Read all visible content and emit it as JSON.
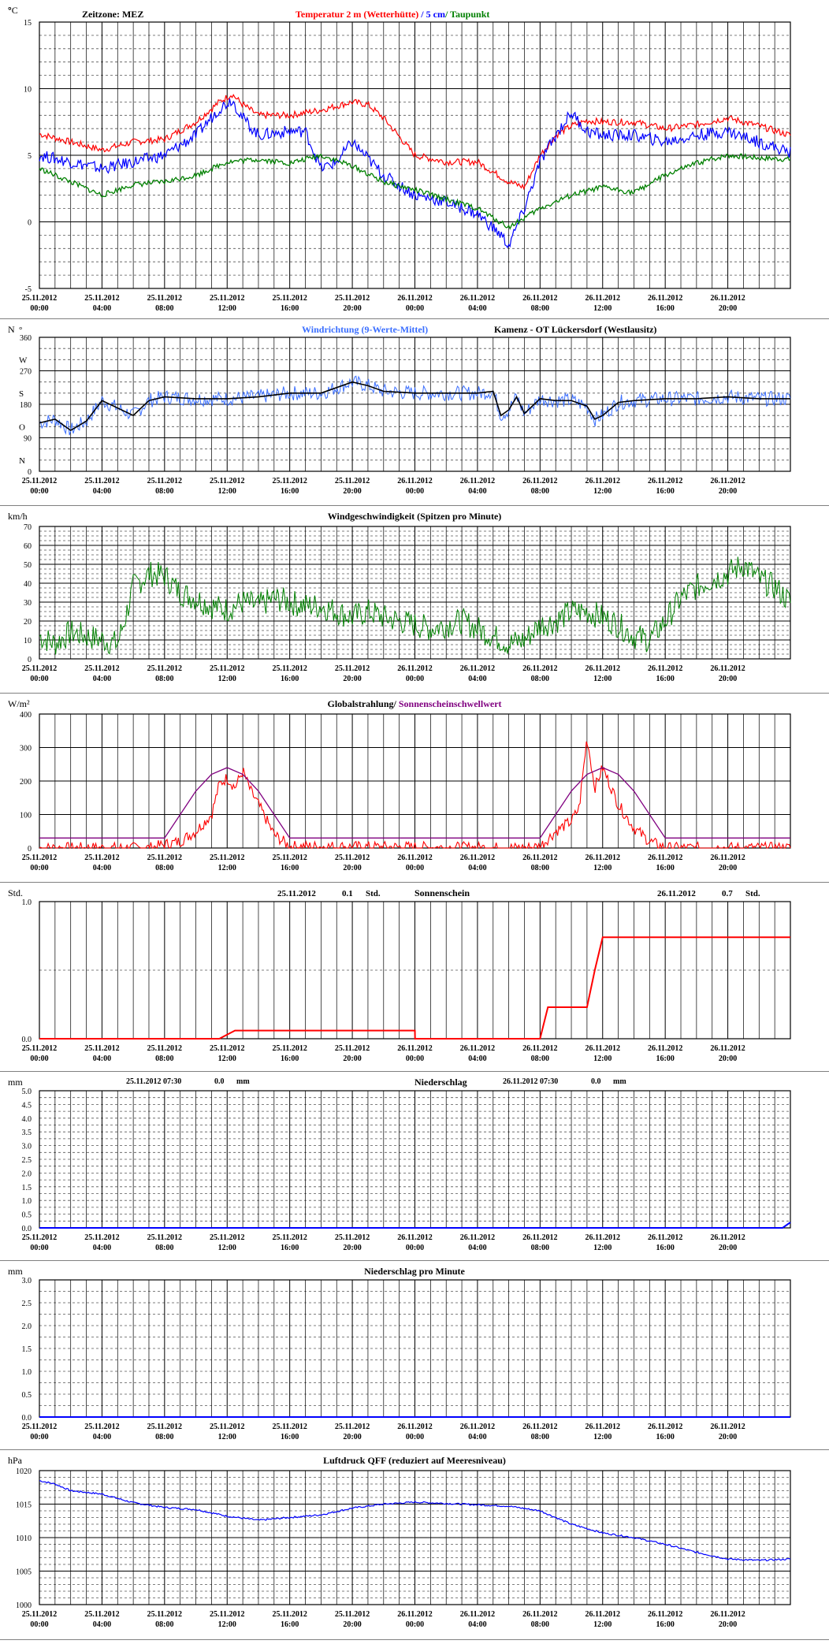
{
  "time_ticks": [
    {
      "date": "25.11.2012",
      "time": "00:00"
    },
    {
      "date": "25.11.2012",
      "time": "04:00"
    },
    {
      "date": "25.11.2012",
      "time": "08:00"
    },
    {
      "date": "25.11.2012",
      "time": "12:00"
    },
    {
      "date": "25.11.2012",
      "time": "16:00"
    },
    {
      "date": "25.11.2012",
      "time": "20:00"
    },
    {
      "date": "26.11.2012",
      "time": "00:00"
    },
    {
      "date": "26.11.2012",
      "time": "04:00"
    },
    {
      "date": "26.11.2012",
      "time": "08:00"
    },
    {
      "date": "26.11.2012",
      "time": "12:00"
    },
    {
      "date": "26.11.2012",
      "time": "16:00"
    },
    {
      "date": "26.11.2012",
      "time": "20:00"
    }
  ],
  "colors": {
    "temp": "#ff0000",
    "soil": "#0000ff",
    "dew": "#008000",
    "wind_dir": "#3b6fff",
    "wind_dir_avg": "#000000",
    "wind": "#008000",
    "rad": "#ff0000",
    "threshold": "#800080",
    "sun": "#ff0000",
    "precip": "#0000ff",
    "pressure": "#0000ff"
  },
  "chart_data": [
    {
      "id": "temperature",
      "type": "line",
      "unit": "°C",
      "zone_label": "Zeitzone: MEZ",
      "title_parts": [
        "Temperatur 2 m (Wetterhütte)",
        "  /  ",
        "5 cm",
        "/ ",
        "Taupunkt"
      ],
      "ylim": [
        -5,
        15
      ],
      "ytick_labels": [
        "15",
        "10",
        "5",
        "0",
        "-5"
      ],
      "series": [
        {
          "name": "Temperatur 2 m (Wetterhütte)",
          "x": [
            0,
            2,
            4,
            6,
            8,
            10,
            11.5,
            12.3,
            13,
            14,
            16,
            18,
            20,
            21,
            22,
            24,
            26,
            28,
            30,
            31,
            32,
            33,
            34,
            35,
            36,
            38,
            40,
            42,
            44,
            46,
            48
          ],
          "y": [
            6.6,
            6,
            5.4,
            6,
            6.2,
            7.5,
            9,
            9.6,
            8.8,
            8,
            8,
            8.4,
            9,
            8.8,
            7.8,
            5,
            4.5,
            4.5,
            3,
            2.6,
            5,
            6.5,
            7.2,
            7.6,
            7.5,
            7.5,
            7,
            7.3,
            7.8,
            7.2,
            6.5
          ]
        },
        {
          "name": "5 cm",
          "x": [
            0,
            2,
            4,
            6,
            8,
            10,
            11.5,
            12.3,
            13,
            14,
            16,
            17,
            18,
            19,
            20,
            22,
            24,
            26,
            28,
            29.5,
            30,
            31,
            32,
            33,
            34,
            35,
            36,
            38,
            40,
            42,
            44,
            46,
            48
          ],
          "y": [
            5,
            4.5,
            4,
            4.5,
            5,
            6.5,
            8.5,
            9.2,
            7.8,
            6.5,
            6.8,
            6.8,
            4,
            4.5,
            6,
            3.5,
            2,
            1.5,
            0.6,
            -1,
            -1.8,
            1,
            4.5,
            6.5,
            8.2,
            6.8,
            6.5,
            6.5,
            6,
            6.5,
            6.8,
            6,
            5.2
          ]
        },
        {
          "name": "Taupunkt",
          "x": [
            0,
            2,
            4,
            6,
            8,
            10,
            12,
            14,
            16,
            18,
            20,
            22,
            24,
            26,
            28,
            30,
            32,
            34,
            36,
            38,
            40,
            42,
            44,
            46,
            48
          ],
          "y": [
            4,
            3,
            2,
            2.8,
            3,
            3.5,
            4.5,
            4.7,
            4.4,
            5,
            4.2,
            3,
            2.4,
            1.7,
            1,
            -0.4,
            1,
            2,
            2.6,
            2.2,
            3.5,
            4.4,
            5,
            4.8,
            4.7
          ]
        }
      ]
    },
    {
      "id": "wind_direction",
      "type": "line",
      "unit": "N",
      "deg_symbol": "°",
      "title_parts": [
        "Windrichtung (9-Werte-Mittel)",
        "Kamenz - OT Lückersdorf (Westlausitz)"
      ],
      "ylim": [
        0,
        360
      ],
      "ytick_labels": [
        "360",
        "270",
        "180",
        "90",
        "0"
      ],
      "compass_labels": [
        "W",
        "S",
        "O",
        "N"
      ],
      "series": [
        {
          "name": "Windrichtung (9-Werte-Mittel)",
          "x": [
            0,
            1,
            2,
            3,
            4,
            5,
            6,
            7,
            8,
            10,
            12,
            14,
            16,
            18,
            20,
            21,
            22,
            24,
            26,
            28,
            29,
            29.5,
            30,
            30.5,
            31,
            32,
            33,
            34,
            35,
            35.5,
            36,
            37,
            38,
            40,
            42,
            44,
            46,
            48
          ],
          "y": [
            130,
            140,
            110,
            135,
            190,
            170,
            150,
            190,
            200,
            195,
            195,
            200,
            210,
            210,
            240,
            230,
            215,
            210,
            210,
            210,
            215,
            150,
            165,
            200,
            155,
            195,
            190,
            190,
            175,
            140,
            150,
            185,
            190,
            195,
            195,
            200,
            195,
            195
          ]
        }
      ]
    },
    {
      "id": "wind_speed",
      "type": "line",
      "unit": "km/h",
      "title": "Windgeschwindigkeit (Spitzen pro Minute)",
      "ylim": [
        0,
        70
      ],
      "ytick_labels": [
        "70",
        "60",
        "50",
        "40",
        "30",
        "20",
        "10",
        "0"
      ],
      "series": [
        {
          "name": "Windgeschwindigkeit",
          "x": [
            0,
            1,
            2,
            3,
            4,
            5,
            5.5,
            6,
            7,
            8,
            9,
            10,
            11,
            12,
            13,
            14,
            15,
            16,
            17,
            18,
            19,
            20,
            21,
            22,
            23,
            24,
            25,
            26,
            27,
            28,
            29,
            30,
            31,
            32,
            33,
            34,
            35,
            36,
            37,
            38,
            39,
            40,
            41,
            42,
            43,
            44,
            45,
            46,
            47,
            48
          ],
          "y": [
            12,
            8,
            14,
            12,
            10,
            8,
            22,
            38,
            45,
            44,
            35,
            32,
            28,
            26,
            30,
            28,
            32,
            30,
            28,
            28,
            25,
            22,
            25,
            22,
            20,
            18,
            16,
            18,
            20,
            16,
            12,
            8,
            10,
            18,
            20,
            25,
            25,
            22,
            18,
            12,
            10,
            20,
            32,
            38,
            42,
            45,
            50,
            42,
            38,
            30
          ]
        }
      ]
    },
    {
      "id": "radiation",
      "type": "line",
      "unit": "W/m²",
      "title_parts": [
        "Globalstrahlung/ ",
        "Sonnenscheinschwellwert"
      ],
      "ylim": [
        0,
        400
      ],
      "ytick_labels": [
        "400",
        "300",
        "200",
        "100",
        "0"
      ],
      "series": [
        {
          "name": "Globalstrahlung",
          "x": [
            0,
            7,
            8,
            9,
            10,
            11,
            11.5,
            12,
            12.5,
            13,
            13.5,
            14,
            15,
            16,
            31,
            32,
            33,
            34,
            34.5,
            35,
            35.5,
            36,
            37,
            38,
            39,
            40,
            48
          ],
          "y": [
            0,
            0,
            10,
            20,
            50,
            100,
            190,
            210,
            180,
            230,
            170,
            130,
            40,
            5,
            0,
            5,
            50,
            80,
            120,
            330,
            180,
            240,
            130,
            60,
            20,
            0,
            0
          ]
        },
        {
          "name": "Sonnenscheinschwellwert",
          "x": [
            0,
            8,
            9,
            10,
            11,
            12,
            13,
            14,
            15,
            16,
            16.5,
            31,
            32,
            33,
            34,
            35,
            36,
            37,
            38,
            39,
            40,
            40.5,
            48
          ],
          "y": [
            30,
            30,
            100,
            170,
            220,
            240,
            220,
            170,
            100,
            30,
            30,
            30,
            30,
            100,
            170,
            220,
            240,
            220,
            170,
            100,
            30,
            30,
            30
          ]
        }
      ]
    },
    {
      "id": "sunshine",
      "type": "line",
      "unit": "Std.",
      "title": "Sonnenschein",
      "annotations": [
        {
          "date": "25.11.2012",
          "value": "0.1",
          "unit": "Std."
        },
        {
          "date": "26.11.2012",
          "value": "0.7",
          "unit": "Std."
        }
      ],
      "ylim": [
        0,
        1
      ],
      "ytick_labels": [
        "1.0",
        "0.0"
      ],
      "series": [
        {
          "name": "Sonnenschein",
          "x": [
            0,
            11.5,
            12,
            12.5,
            24,
            24.01,
            32,
            32.5,
            35,
            35.5,
            36,
            48
          ],
          "y": [
            0,
            0,
            0.03,
            0.06,
            0.06,
            0,
            0,
            0.23,
            0.23,
            0.5,
            0.74,
            0.74
          ]
        }
      ]
    },
    {
      "id": "precipitation",
      "type": "line",
      "unit": "mm",
      "title": "Niederschlag",
      "annotations": [
        {
          "date": "25.11.2012 07:30",
          "value": "0.0",
          "unit": "mm"
        },
        {
          "date": "26.11.2012 07:30",
          "value": "0.0",
          "unit": "mm"
        }
      ],
      "ylim": [
        0,
        5
      ],
      "ytick_labels": [
        "5.0",
        "4.5",
        "4.0",
        "3.5",
        "3.0",
        "2.5",
        "2.0",
        "1.5",
        "1.0",
        "0.5",
        "0.0"
      ],
      "series": [
        {
          "name": "Niederschlag",
          "x": [
            0,
            47.5,
            48
          ],
          "y": [
            0,
            0,
            0.2
          ]
        }
      ]
    },
    {
      "id": "precip_minute",
      "type": "line",
      "unit": "mm",
      "title": "Niederschlag pro Minute",
      "ylim": [
        0,
        3
      ],
      "ytick_labels": [
        "3.0",
        "2.5",
        "2.0",
        "1.5",
        "1.0",
        "0.5",
        "0.0"
      ],
      "series": [
        {
          "name": "Niederschlag pro Minute",
          "x": [
            0,
            48
          ],
          "y": [
            0,
            0
          ]
        }
      ]
    },
    {
      "id": "pressure",
      "type": "line",
      "unit": "hPa",
      "title": "Luftdruck QFF (reduziert auf Meeresniveau)",
      "ylim": [
        1000,
        1020
      ],
      "ytick_labels": [
        "1020",
        "1015",
        "1010",
        "1005",
        "1000"
      ],
      "series": [
        {
          "name": "Luftdruck QFF",
          "x": [
            0,
            1,
            2,
            4,
            6,
            8,
            10,
            12,
            14,
            16,
            18,
            20,
            22,
            24,
            26,
            28,
            30,
            32,
            34,
            36,
            38,
            40,
            42,
            44,
            46,
            48
          ],
          "y": [
            1018.5,
            1018,
            1017,
            1016.5,
            1015.2,
            1014.5,
            1014.2,
            1013.2,
            1012.6,
            1013,
            1013.4,
            1014.4,
            1015,
            1015.3,
            1015.1,
            1014.9,
            1014.7,
            1014,
            1012,
            1010.7,
            1010,
            1009,
            1007.8,
            1006.8,
            1006.6,
            1006.8
          ]
        }
      ]
    }
  ]
}
